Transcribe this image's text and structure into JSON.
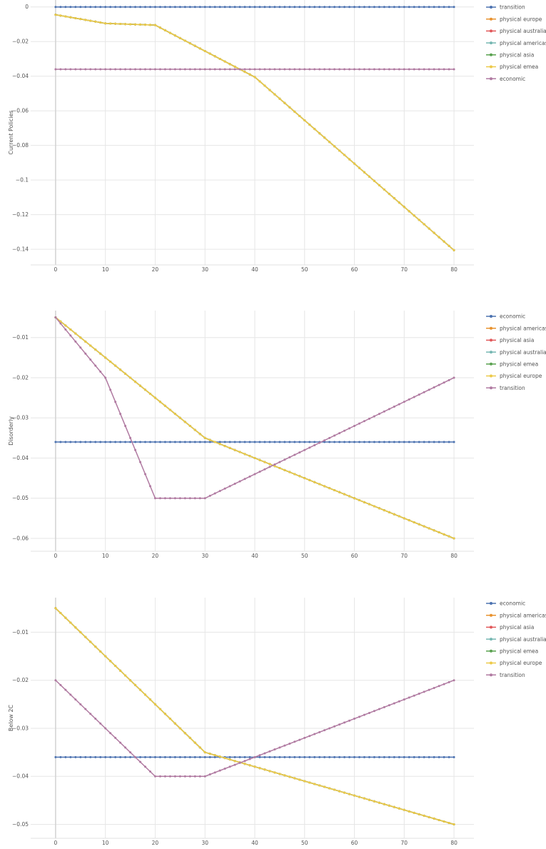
{
  "chart_data": [
    {
      "type": "line",
      "ylabel": "Current Policies",
      "xlim": [
        -5,
        84
      ],
      "ylim": [
        -0.149,
        0.004
      ],
      "x_ticks": [
        0,
        10,
        20,
        30,
        40,
        50,
        60,
        70,
        80
      ],
      "y_ticks": [
        0,
        -0.02,
        -0.04,
        -0.06,
        -0.08,
        -0.1,
        -0.12,
        -0.14
      ],
      "y_tick_labels": [
        "0",
        "−0.02",
        "−0.04",
        "−0.06",
        "−0.08",
        "−0.1",
        "−0.12",
        "−0.14"
      ],
      "grid": true,
      "legend_placement": "right",
      "series": [
        {
          "name": "transition",
          "color": "#4c72b0",
          "points": [
            [
              0,
              0
            ],
            [
              80,
              0
            ]
          ]
        },
        {
          "name": "physical europe",
          "color": "#e8912d",
          "points": [
            [
              0,
              -0.0045
            ],
            [
              10,
              -0.0095
            ],
            [
              20,
              -0.0105
            ],
            [
              40,
              -0.0405
            ],
            [
              80,
              -0.1405
            ]
          ]
        },
        {
          "name": "physical australia",
          "color": "#e15759",
          "points": [
            [
              0,
              -0.0045
            ],
            [
              10,
              -0.0095
            ],
            [
              20,
              -0.0105
            ],
            [
              40,
              -0.0405
            ],
            [
              80,
              -0.1405
            ]
          ]
        },
        {
          "name": "physical americas",
          "color": "#76b7b2",
          "points": [
            [
              0,
              -0.0045
            ],
            [
              10,
              -0.0095
            ],
            [
              20,
              -0.0105
            ],
            [
              40,
              -0.0405
            ],
            [
              80,
              -0.1405
            ]
          ]
        },
        {
          "name": "physical asia",
          "color": "#59a14f",
          "points": [
            [
              0,
              -0.0045
            ],
            [
              10,
              -0.0095
            ],
            [
              20,
              -0.0105
            ],
            [
              40,
              -0.0405
            ],
            [
              80,
              -0.1405
            ]
          ]
        },
        {
          "name": "physical emea",
          "color": "#edc948",
          "points": [
            [
              0,
              -0.0045
            ],
            [
              10,
              -0.0095
            ],
            [
              20,
              -0.0105
            ],
            [
              40,
              -0.0405
            ],
            [
              80,
              -0.1405
            ]
          ]
        },
        {
          "name": "economic",
          "color": "#b07aa1",
          "points": [
            [
              0,
              -0.036
            ],
            [
              80,
              -0.036
            ]
          ]
        }
      ]
    },
    {
      "type": "line",
      "ylabel": "Disorderly",
      "xlim": [
        -5,
        84
      ],
      "ylim": [
        -0.0632,
        -0.0033
      ],
      "x_ticks": [
        0,
        10,
        20,
        30,
        40,
        50,
        60,
        70,
        80
      ],
      "y_ticks": [
        -0.01,
        -0.02,
        -0.03,
        -0.04,
        -0.05,
        -0.06
      ],
      "y_tick_labels": [
        "−0.01",
        "−0.02",
        "−0.03",
        "−0.04",
        "−0.05",
        "−0.06"
      ],
      "grid": true,
      "legend_placement": "right",
      "series": [
        {
          "name": "economic",
          "color": "#4c72b0",
          "points": [
            [
              0,
              -0.036
            ],
            [
              80,
              -0.036
            ]
          ]
        },
        {
          "name": "physical americas",
          "color": "#e8912d",
          "points": [
            [
              0,
              -0.005
            ],
            [
              30,
              -0.035
            ],
            [
              80,
              -0.06
            ]
          ]
        },
        {
          "name": "physical asia",
          "color": "#e15759",
          "points": [
            [
              0,
              -0.005
            ],
            [
              30,
              -0.035
            ],
            [
              80,
              -0.06
            ]
          ]
        },
        {
          "name": "physical australia",
          "color": "#76b7b2",
          "points": [
            [
              0,
              -0.005
            ],
            [
              30,
              -0.035
            ],
            [
              80,
              -0.06
            ]
          ]
        },
        {
          "name": "physical emea",
          "color": "#59a14f",
          "points": [
            [
              0,
              -0.005
            ],
            [
              30,
              -0.035
            ],
            [
              80,
              -0.06
            ]
          ]
        },
        {
          "name": "physical europe",
          "color": "#edc948",
          "points": [
            [
              0,
              -0.005
            ],
            [
              30,
              -0.035
            ],
            [
              80,
              -0.06
            ]
          ]
        },
        {
          "name": "transition",
          "color": "#b07aa1",
          "points": [
            [
              0,
              -0.005
            ],
            [
              10,
              -0.02
            ],
            [
              20,
              -0.05
            ],
            [
              30,
              -0.05
            ],
            [
              80,
              -0.02
            ]
          ]
        }
      ]
    },
    {
      "type": "line",
      "ylabel": "Below 2C",
      "xlim": [
        -5,
        84
      ],
      "ylim": [
        -0.0529,
        -0.0028
      ],
      "x_ticks": [
        0,
        10,
        20,
        30,
        40,
        50,
        60,
        70,
        80
      ],
      "y_ticks": [
        -0.01,
        -0.02,
        -0.03,
        -0.04,
        -0.05
      ],
      "y_tick_labels": [
        "−0.01",
        "−0.02",
        "−0.03",
        "−0.04",
        "−0.05"
      ],
      "grid": true,
      "legend_placement": "right",
      "series": [
        {
          "name": "economic",
          "color": "#4c72b0",
          "points": [
            [
              0,
              -0.036
            ],
            [
              80,
              -0.036
            ]
          ]
        },
        {
          "name": "physical americas",
          "color": "#e8912d",
          "points": [
            [
              0,
              -0.005
            ],
            [
              30,
              -0.035
            ],
            [
              80,
              -0.05
            ]
          ]
        },
        {
          "name": "physical asia",
          "color": "#e15759",
          "points": [
            [
              0,
              -0.005
            ],
            [
              30,
              -0.035
            ],
            [
              80,
              -0.05
            ]
          ]
        },
        {
          "name": "physical australia",
          "color": "#76b7b2",
          "points": [
            [
              0,
              -0.005
            ],
            [
              30,
              -0.035
            ],
            [
              80,
              -0.05
            ]
          ]
        },
        {
          "name": "physical emea",
          "color": "#59a14f",
          "points": [
            [
              0,
              -0.005
            ],
            [
              30,
              -0.035
            ],
            [
              80,
              -0.05
            ]
          ]
        },
        {
          "name": "physical europe",
          "color": "#edc948",
          "points": [
            [
              0,
              -0.005
            ],
            [
              30,
              -0.035
            ],
            [
              80,
              -0.05
            ]
          ]
        },
        {
          "name": "transition",
          "color": "#b07aa1",
          "points": [
            [
              0,
              -0.02
            ],
            [
              20,
              -0.04
            ],
            [
              30,
              -0.04
            ],
            [
              80,
              -0.02
            ]
          ]
        }
      ]
    }
  ]
}
